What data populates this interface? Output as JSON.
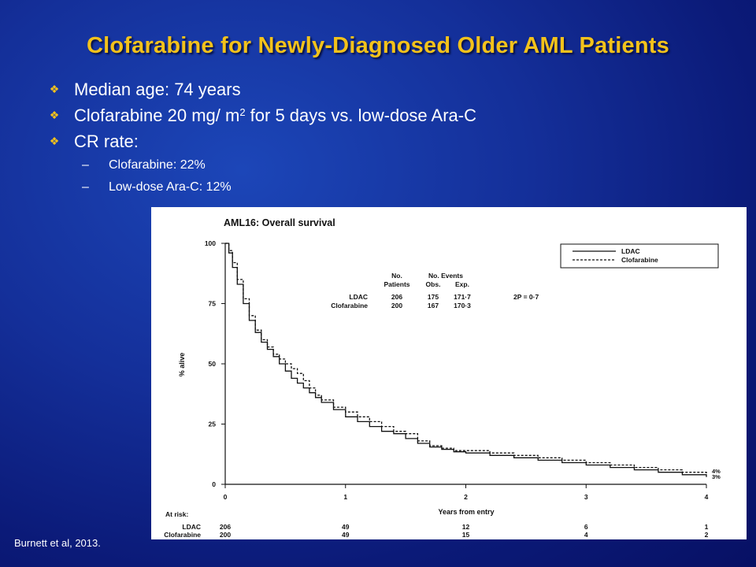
{
  "slide": {
    "title": "Clofarabine for Newly-Diagnosed Older AML Patients",
    "bullets": [
      {
        "text": "Median age: 74 years"
      },
      {
        "text_before": "Clofarabine 20 mg/ m",
        "superscript": "2",
        "text_after": " for 5 days vs. low-dose Ara-C"
      },
      {
        "text": "CR rate:"
      }
    ],
    "sub_bullets": [
      {
        "dash": "–",
        "text": "Clofarabine: 22%"
      },
      {
        "dash": "–",
        "text": "Low-dose Ara-C: 12%"
      }
    ],
    "citation": "Burnett et al, 2013.",
    "colors": {
      "title": "#f3c21b",
      "text": "#ffffff",
      "background": "#102a92"
    }
  },
  "chart_data": {
    "type": "line",
    "title": "AML16: Overall survival",
    "xlabel": "Years from entry",
    "ylabel": "% alive",
    "xlim": [
      0,
      4
    ],
    "ylim": [
      0,
      100
    ],
    "x_ticks": [
      "0",
      "1",
      "2",
      "3",
      "4"
    ],
    "y_ticks": [
      "0",
      "25",
      "50",
      "75",
      "100"
    ],
    "legend": {
      "position": "top-right",
      "entries": [
        {
          "name": "LDAC",
          "style": "solid"
        },
        {
          "name": "Clofarabine",
          "style": "dashed"
        }
      ]
    },
    "events_table": {
      "headers": [
        "No. Patients",
        "No. Events Obs.",
        "Exp."
      ],
      "header_line1": [
        "No.",
        "No. Events",
        ""
      ],
      "header_line2": [
        "Patients",
        "Obs.",
        "Exp."
      ],
      "rows": [
        {
          "label": "LDAC",
          "values": [
            "206",
            "175",
            "171·7"
          ]
        },
        {
          "label": "Clofarabine",
          "values": [
            "200",
            "167",
            "170·3"
          ]
        }
      ]
    },
    "p_value": "2P = 0·7",
    "end_labels": [
      "4%",
      "3%"
    ],
    "at_risk": {
      "label": "At risk:",
      "rows": [
        {
          "name": "LDAC",
          "values": [
            "206",
            "49",
            "12",
            "6",
            "1"
          ]
        },
        {
          "name": "Clofarabine",
          "values": [
            "200",
            "49",
            "15",
            "4",
            "2"
          ]
        }
      ]
    },
    "series": [
      {
        "name": "LDAC",
        "style": "solid",
        "points": [
          [
            0,
            100
          ],
          [
            0.03,
            96
          ],
          [
            0.06,
            90
          ],
          [
            0.1,
            83
          ],
          [
            0.15,
            75
          ],
          [
            0.2,
            68
          ],
          [
            0.25,
            63
          ],
          [
            0.3,
            59
          ],
          [
            0.35,
            56
          ],
          [
            0.4,
            53
          ],
          [
            0.45,
            50
          ],
          [
            0.5,
            47
          ],
          [
            0.55,
            44
          ],
          [
            0.6,
            42
          ],
          [
            0.65,
            40
          ],
          [
            0.7,
            38
          ],
          [
            0.75,
            36
          ],
          [
            0.8,
            34
          ],
          [
            0.9,
            31
          ],
          [
            1.0,
            28
          ],
          [
            1.1,
            26
          ],
          [
            1.2,
            24
          ],
          [
            1.3,
            22
          ],
          [
            1.4,
            21
          ],
          [
            1.5,
            19
          ],
          [
            1.6,
            17
          ],
          [
            1.7,
            15.5
          ],
          [
            1.8,
            14.5
          ],
          [
            1.9,
            13.5
          ],
          [
            2.0,
            13
          ],
          [
            2.2,
            12
          ],
          [
            2.4,
            11
          ],
          [
            2.6,
            10
          ],
          [
            2.8,
            9
          ],
          [
            3.0,
            8
          ],
          [
            3.2,
            7
          ],
          [
            3.4,
            6
          ],
          [
            3.6,
            5
          ],
          [
            3.8,
            4
          ],
          [
            4.0,
            3
          ]
        ]
      },
      {
        "name": "Clofarabine",
        "style": "dashed",
        "points": [
          [
            0,
            100
          ],
          [
            0.03,
            97
          ],
          [
            0.06,
            92
          ],
          [
            0.1,
            85
          ],
          [
            0.15,
            77
          ],
          [
            0.2,
            70
          ],
          [
            0.25,
            64
          ],
          [
            0.3,
            60
          ],
          [
            0.35,
            57
          ],
          [
            0.4,
            54
          ],
          [
            0.45,
            52
          ],
          [
            0.5,
            50
          ],
          [
            0.55,
            48
          ],
          [
            0.6,
            46
          ],
          [
            0.65,
            43
          ],
          [
            0.7,
            40
          ],
          [
            0.75,
            37
          ],
          [
            0.8,
            35
          ],
          [
            0.9,
            32
          ],
          [
            1.0,
            30
          ],
          [
            1.1,
            28
          ],
          [
            1.2,
            26
          ],
          [
            1.3,
            24
          ],
          [
            1.4,
            22
          ],
          [
            1.5,
            21
          ],
          [
            1.6,
            18
          ],
          [
            1.7,
            16
          ],
          [
            1.8,
            15
          ],
          [
            1.9,
            14
          ],
          [
            2.0,
            14
          ],
          [
            2.2,
            13
          ],
          [
            2.4,
            12
          ],
          [
            2.6,
            11
          ],
          [
            2.8,
            10
          ],
          [
            3.0,
            9
          ],
          [
            3.2,
            8
          ],
          [
            3.4,
            7
          ],
          [
            3.6,
            6
          ],
          [
            3.8,
            5
          ],
          [
            4.0,
            4
          ]
        ]
      }
    ]
  }
}
